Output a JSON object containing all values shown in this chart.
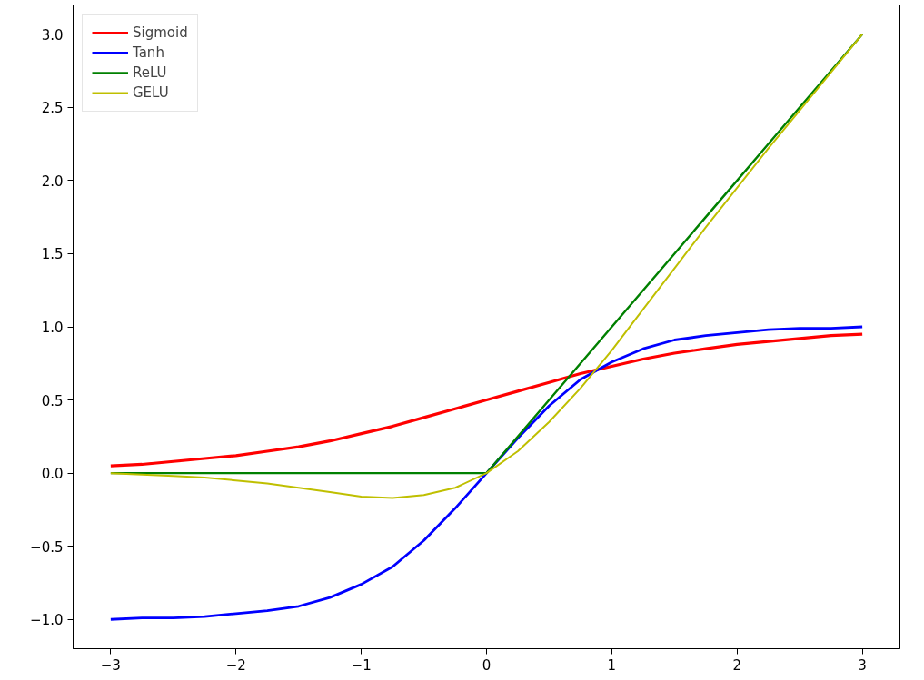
{
  "chart_data": {
    "type": "line",
    "x": [
      -3,
      -2.75,
      -2.5,
      -2.25,
      -2,
      -1.75,
      -1.5,
      -1.25,
      -1,
      -0.75,
      -0.5,
      -0.25,
      0,
      0.25,
      0.5,
      0.75,
      1,
      1.25,
      1.5,
      1.75,
      2,
      2.25,
      2.5,
      2.75,
      3
    ],
    "series": [
      {
        "name": "Sigmoid",
        "color": "#ff0000",
        "values": [
          0.05,
          0.06,
          0.08,
          0.1,
          0.12,
          0.15,
          0.18,
          0.22,
          0.27,
          0.32,
          0.38,
          0.44,
          0.5,
          0.56,
          0.62,
          0.68,
          0.73,
          0.78,
          0.82,
          0.85,
          0.88,
          0.9,
          0.92,
          0.94,
          0.95
        ]
      },
      {
        "name": "Tanh",
        "color": "#0000ff",
        "values": [
          -1.0,
          -0.99,
          -0.99,
          -0.98,
          -0.96,
          -0.94,
          -0.91,
          -0.85,
          -0.76,
          -0.64,
          -0.46,
          -0.24,
          0,
          0.24,
          0.46,
          0.64,
          0.76,
          0.85,
          0.91,
          0.94,
          0.96,
          0.98,
          0.99,
          0.99,
          1.0
        ]
      },
      {
        "name": "ReLU",
        "color": "#008000",
        "values": [
          0,
          0,
          0,
          0,
          0,
          0,
          0,
          0,
          0,
          0,
          0,
          0,
          0,
          0.25,
          0.5,
          0.75,
          1,
          1.25,
          1.5,
          1.75,
          2,
          2.25,
          2.5,
          2.75,
          3
        ]
      },
      {
        "name": "GELU",
        "color": "#bfbf00",
        "values": [
          -0.0,
          -0.01,
          -0.02,
          -0.03,
          -0.05,
          -0.07,
          -0.1,
          -0.13,
          -0.16,
          -0.17,
          -0.15,
          -0.1,
          0,
          0.15,
          0.35,
          0.58,
          0.84,
          1.12,
          1.4,
          1.68,
          1.95,
          2.22,
          2.48,
          2.74,
          3.0
        ]
      }
    ],
    "xlim": [
      -3.3,
      3.3
    ],
    "ylim": [
      -1.2,
      3.2
    ],
    "xticks": [
      {
        "value": -3,
        "label": "−3"
      },
      {
        "value": -2,
        "label": "−2"
      },
      {
        "value": -1,
        "label": "−1"
      },
      0,
      1,
      2,
      3
    ],
    "yticks": [
      {
        "value": -1,
        "label": "−1.0"
      },
      {
        "value": -0.5,
        "label": "−0.5"
      },
      {
        "value": 0,
        "label": "0.0"
      },
      {
        "value": 0.5,
        "label": "0.5"
      },
      {
        "value": 1,
        "label": "1.0"
      },
      {
        "value": 1.5,
        "label": "1.5"
      },
      {
        "value": 2,
        "label": "2.0"
      },
      {
        "value": 2.5,
        "label": "2.5"
      },
      {
        "value": 3,
        "label": "3.0"
      }
    ],
    "legend": "top left",
    "grid": false
  }
}
